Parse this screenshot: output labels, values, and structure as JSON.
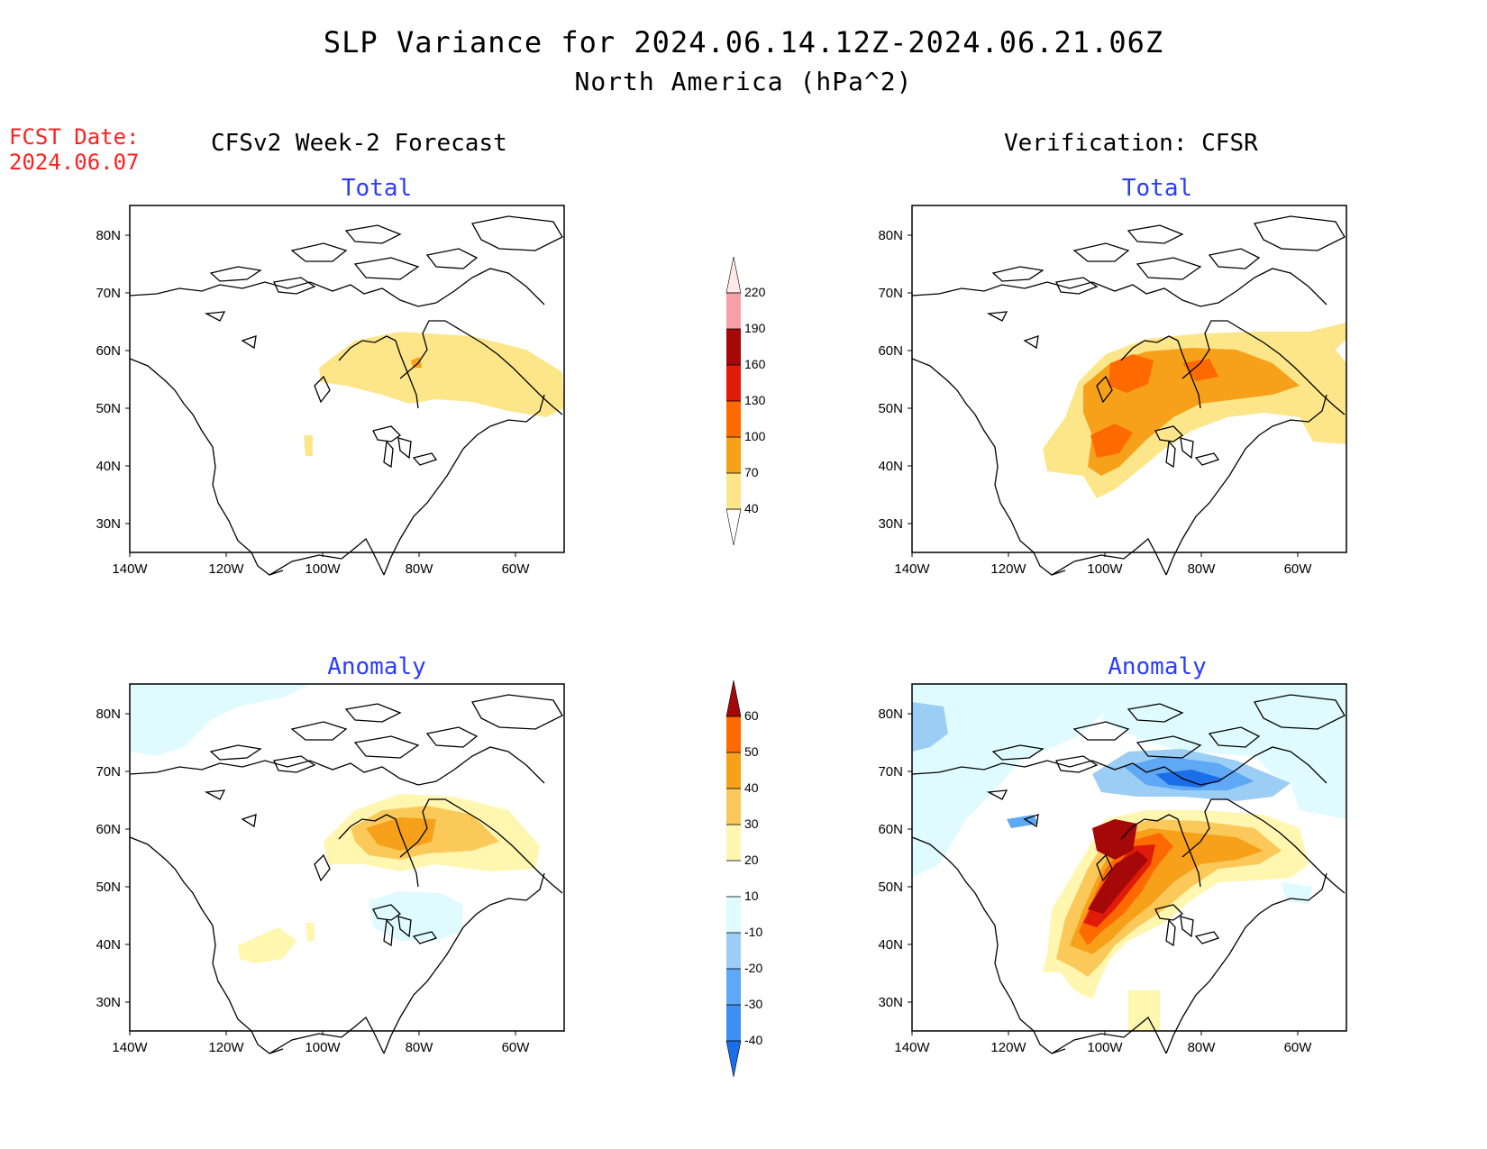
{
  "title": {
    "line1": "SLP Variance for 2024.06.14.12Z-2024.06.21.06Z",
    "line2": "North America (hPa^2)"
  },
  "fcst_date": {
    "label": "FCST Date:",
    "value": "2024.06.07"
  },
  "columns": {
    "left": "CFSv2 Week-2 Forecast",
    "right": "Verification: CFSR"
  },
  "panel_titles": {
    "forecast_total": "Total",
    "forecast_anomaly": "Anomaly",
    "verification_total": "Total",
    "verification_anomaly": "Anomaly"
  },
  "axes": {
    "lat_ticks": [
      "30N",
      "40N",
      "50N",
      "60N",
      "70N",
      "80N"
    ],
    "lon_ticks": [
      "140W",
      "120W",
      "100W",
      "80W",
      "60W"
    ]
  },
  "colorbars": {
    "total": {
      "levels": [
        "40",
        "70",
        "100",
        "130",
        "160",
        "190",
        "220"
      ],
      "colors": [
        "#fde68a",
        "#f7a11a",
        "#ff6a00",
        "#e01b0a",
        "#a50808",
        "#f4a0a6",
        "#ffe8e6"
      ]
    },
    "anomaly": {
      "levels": [
        "-40",
        "-30",
        "-20",
        "-10",
        "10",
        "20",
        "30",
        "40",
        "50",
        "60"
      ],
      "colors": [
        "#1a6ee8",
        "#3d8ef0",
        "#5fa8f5",
        "#9ccdf5",
        "#e0fbff",
        "#ffffff",
        "#fff6b0",
        "#fbc95a",
        "#f7a11a",
        "#ff6a00",
        "#e01b0a",
        "#a50808"
      ]
    }
  },
  "palette": {
    "yellow": "#fde68a",
    "orange": "#f7a11a",
    "dark_orange": "#ff6a00",
    "red": "#e01b0a",
    "dark_red": "#a50808",
    "pale_blue": "#e0fbff",
    "light_blue": "#9ccdf5",
    "mid_blue": "#5fa8f5",
    "blue": "#1a6ee8",
    "pale_yellow": "#fff6b0",
    "light_orange": "#fbc95a"
  }
}
